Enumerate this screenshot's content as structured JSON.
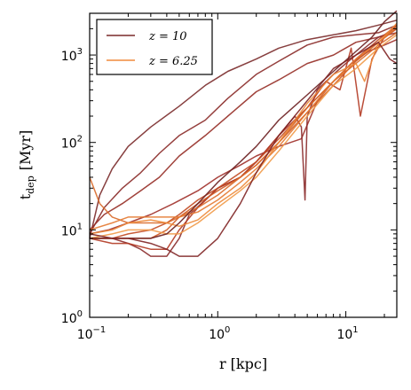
{
  "chart_data": {
    "type": "line",
    "xlabel": "r [kpc]",
    "ylabel_main": "t",
    "ylabel_sub": "dep",
    "ylabel_unit": "[Myr]",
    "x_scale": "log",
    "y_scale": "log",
    "xlim": [
      0.1,
      25
    ],
    "ylim": [
      1,
      3000
    ],
    "x_ticks": [
      {
        "base": "10",
        "exp": "−1",
        "value": 0.1
      },
      {
        "base": "10",
        "exp": "0",
        "value": 1
      },
      {
        "base": "10",
        "exp": "1",
        "value": 10
      }
    ],
    "y_ticks": [
      {
        "base": "10",
        "exp": "0",
        "value": 1
      },
      {
        "base": "10",
        "exp": "1",
        "value": 10
      },
      {
        "base": "10",
        "exp": "2",
        "value": 100
      },
      {
        "base": "10",
        "exp": "3",
        "value": 1000
      }
    ],
    "grid": false,
    "legend_position": "top-left",
    "legend": [
      {
        "label": "z = 10",
        "color": "#7a2a2a"
      },
      {
        "label": "z = 6.25",
        "color": "#f08a3c"
      }
    ],
    "series": [
      {
        "color": "#7a2a2a",
        "x": [
          0.1,
          0.12,
          0.15,
          0.2,
          0.3,
          0.5,
          0.8,
          1.2,
          2,
          3,
          5,
          8,
          12,
          18,
          25
        ],
        "y": [
          8,
          25,
          50,
          90,
          150,
          260,
          450,
          650,
          900,
          1200,
          1500,
          1700,
          1900,
          2200,
          2500
        ]
      },
      {
        "color": "#8a2a28",
        "x": [
          0.1,
          0.13,
          0.18,
          0.25,
          0.35,
          0.5,
          0.8,
          1.2,
          2,
          3,
          5,
          8,
          12,
          18,
          25
        ],
        "y": [
          9,
          18,
          30,
          45,
          75,
          120,
          180,
          320,
          600,
          850,
          1300,
          1600,
          1700,
          1800,
          2200
        ]
      },
      {
        "color": "#962e26",
        "x": [
          0.1,
          0.13,
          0.18,
          0.25,
          0.35,
          0.5,
          0.8,
          1.2,
          2,
          3,
          5,
          8,
          12,
          18,
          25
        ],
        "y": [
          10,
          15,
          20,
          28,
          40,
          70,
          120,
          200,
          380,
          520,
          800,
          1000,
          1400,
          1600,
          1800
        ]
      },
      {
        "color": "#a0302a",
        "x": [
          0.1,
          0.14,
          0.2,
          0.3,
          0.45,
          0.7,
          1,
          1.5,
          2,
          3,
          4.5,
          6,
          8,
          11,
          15,
          20,
          25
        ],
        "y": [
          9,
          10,
          12,
          15,
          20,
          28,
          40,
          55,
          70,
          90,
          110,
          300,
          500,
          800,
          1100,
          1300,
          1500
        ]
      },
      {
        "color": "#8b2b2b",
        "x": [
          0.1,
          0.15,
          0.2,
          0.25,
          0.3,
          0.4,
          0.5,
          0.6,
          0.8,
          1,
          1.5,
          2,
          3,
          4,
          4.5,
          4.8,
          5,
          6,
          8,
          10,
          12,
          15,
          18,
          22,
          25
        ],
        "y": [
          8,
          8,
          7,
          6,
          5,
          5,
          8,
          15,
          22,
          30,
          40,
          60,
          120,
          200,
          150,
          22,
          200,
          400,
          600,
          800,
          1000,
          1300,
          1600,
          1800,
          2000
        ]
      },
      {
        "color": "#b33a24",
        "x": [
          0.1,
          0.15,
          0.2,
          0.3,
          0.4,
          0.5,
          0.7,
          1,
          1.5,
          2,
          3,
          5,
          7,
          9,
          11,
          13,
          16,
          20,
          25
        ],
        "y": [
          8,
          7,
          7,
          6,
          6,
          10,
          18,
          30,
          40,
          60,
          120,
          250,
          500,
          400,
          1200,
          200,
          900,
          1600,
          2200
        ]
      },
      {
        "color": "#c24a22",
        "x": [
          0.1,
          0.15,
          0.2,
          0.3,
          0.4,
          0.5,
          0.7,
          1,
          1.5,
          2,
          3,
          5,
          8,
          12,
          18,
          25
        ],
        "y": [
          8,
          8,
          9,
          10,
          12,
          15,
          22,
          30,
          45,
          60,
          110,
          250,
          500,
          900,
          1500,
          2200
        ]
      },
      {
        "color": "#cf5a24",
        "x": [
          0.1,
          0.15,
          0.2,
          0.3,
          0.4,
          0.5,
          0.7,
          1,
          1.5,
          2,
          3,
          5,
          8,
          12,
          18,
          25
        ],
        "y": [
          8,
          8,
          8,
          8,
          10,
          14,
          20,
          28,
          40,
          55,
          100,
          220,
          450,
          850,
          1400,
          2000
        ]
      },
      {
        "color": "#d96a2a",
        "x": [
          0.1,
          0.12,
          0.15,
          0.2,
          0.3,
          0.4,
          0.5,
          0.7,
          1,
          1.5,
          2,
          3,
          5,
          8,
          12,
          18,
          25
        ],
        "y": [
          40,
          20,
          14,
          12,
          12,
          12,
          14,
          18,
          25,
          40,
          55,
          100,
          250,
          500,
          800,
          1300,
          1800
        ]
      },
      {
        "color": "#e47a32",
        "x": [
          0.1,
          0.15,
          0.2,
          0.3,
          0.4,
          0.5,
          0.7,
          1,
          1.5,
          2,
          3,
          5,
          8,
          12,
          18,
          25
        ],
        "y": [
          10,
          12,
          14,
          14,
          14,
          14,
          16,
          22,
          35,
          50,
          90,
          220,
          500,
          900,
          1400,
          2100
        ]
      },
      {
        "color": "#ed8a3a",
        "x": [
          0.1,
          0.15,
          0.2,
          0.3,
          0.4,
          0.5,
          0.7,
          1,
          1.5,
          2,
          3,
          5,
          8,
          12,
          14,
          18,
          25
        ],
        "y": [
          9,
          10,
          12,
          13,
          12,
          11,
          13,
          20,
          30,
          45,
          100,
          280,
          600,
          800,
          500,
          1400,
          2300
        ]
      },
      {
        "color": "#f19a48",
        "x": [
          0.1,
          0.15,
          0.2,
          0.3,
          0.4,
          0.5,
          0.7,
          1,
          1.5,
          2,
          3,
          5,
          8,
          12,
          18,
          25
        ],
        "y": [
          8,
          9,
          10,
          10,
          9,
          9,
          12,
          18,
          28,
          40,
          80,
          200,
          450,
          700,
          1200,
          1700
        ]
      },
      {
        "color": "#6b1f20",
        "x": [
          0.1,
          0.15,
          0.2,
          0.3,
          0.4,
          0.5,
          0.7,
          1,
          1.5,
          2,
          3,
          5,
          8,
          12,
          16,
          20,
          25
        ],
        "y": [
          8,
          8,
          8,
          8,
          9,
          12,
          20,
          35,
          60,
          90,
          180,
          350,
          650,
          1100,
          1600,
          2400,
          3200
        ]
      },
      {
        "color": "#7f2424",
        "x": [
          0.1,
          0.15,
          0.2,
          0.3,
          0.4,
          0.5,
          0.7,
          1,
          1.5,
          2,
          3,
          5,
          8,
          12,
          18,
          22,
          25
        ],
        "y": [
          9,
          8,
          8,
          7,
          6,
          5,
          5,
          8,
          20,
          45,
          120,
          300,
          700,
          1000,
          1400,
          900,
          800
        ]
      }
    ]
  }
}
